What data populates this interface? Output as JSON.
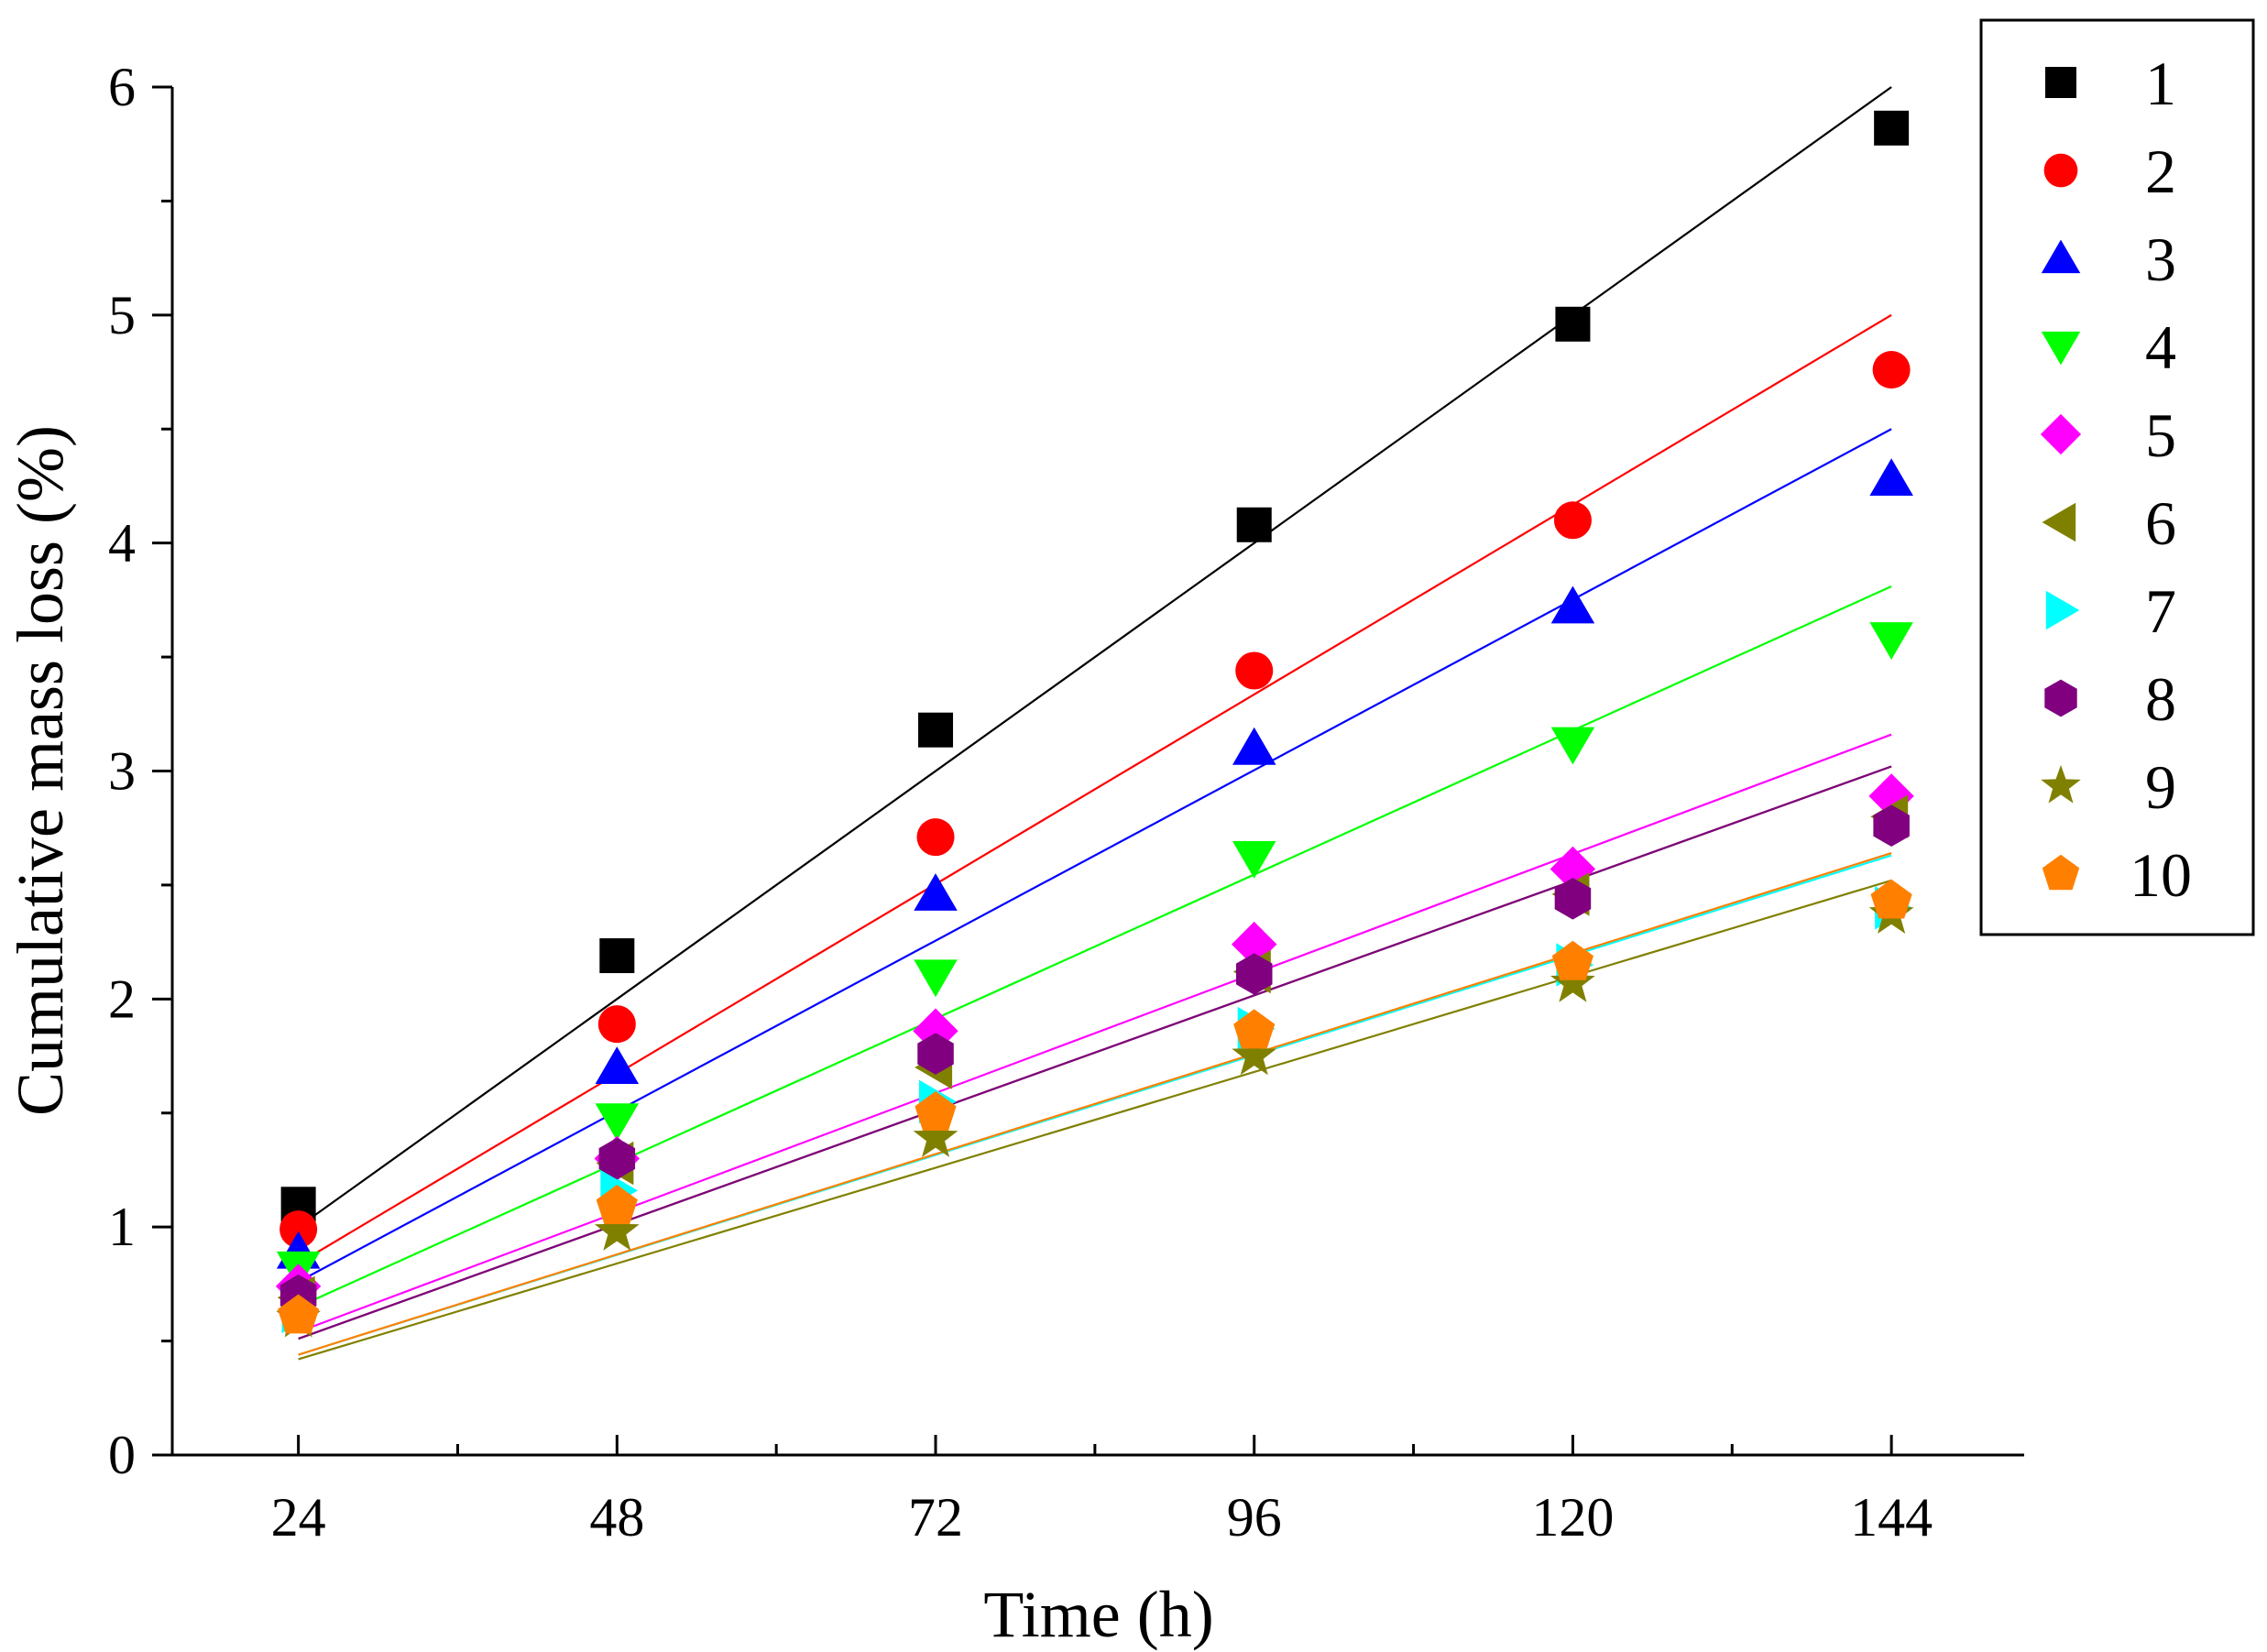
{
  "chart_data": {
    "type": "scatter",
    "xlabel": "Time (h)",
    "ylabel": "Cumulative mass loss (%)",
    "x": [
      24,
      48,
      72,
      96,
      120,
      144
    ],
    "x_ticks": [
      24,
      48,
      72,
      96,
      120,
      144
    ],
    "y_ticks": [
      0,
      1,
      2,
      3,
      4,
      5,
      6
    ],
    "xlim": [
      14.5,
      154
    ],
    "ylim": [
      0,
      6
    ],
    "legend_position": "top-right",
    "series": [
      {
        "name": "1",
        "marker": "square",
        "color": "#000000",
        "values": [
          1.1,
          2.19,
          3.18,
          4.08,
          4.96,
          5.82
        ],
        "fit": {
          "x0": 24,
          "y0": 1.0,
          "x1": 144,
          "y1": 6.0
        }
      },
      {
        "name": "2",
        "marker": "circle",
        "color": "#ff0000",
        "values": [
          0.99,
          1.89,
          2.71,
          3.44,
          4.1,
          4.76
        ],
        "fit": {
          "x0": 24,
          "y0": 0.84,
          "x1": 144,
          "y1": 5.0
        }
      },
      {
        "name": "3",
        "marker": "triangle-up",
        "color": "#0000ff",
        "values": [
          0.89,
          1.7,
          2.46,
          3.1,
          3.72,
          4.28
        ],
        "fit": {
          "x0": 24,
          "y0": 0.76,
          "x1": 144,
          "y1": 4.5
        }
      },
      {
        "name": "4",
        "marker": "triangle-down",
        "color": "#00ff00",
        "values": [
          0.82,
          1.47,
          2.1,
          2.62,
          3.12,
          3.58
        ],
        "fit": {
          "x0": 24,
          "y0": 0.65,
          "x1": 144,
          "y1": 3.81
        }
      },
      {
        "name": "5",
        "marker": "diamond",
        "color": "#ff00ff",
        "values": [
          0.74,
          1.3,
          1.86,
          2.24,
          2.57,
          2.89
        ],
        "fit": {
          "x0": 24,
          "y0": 0.54,
          "x1": 144,
          "y1": 3.16
        }
      },
      {
        "name": "6",
        "marker": "triangle-left",
        "color": "#808000",
        "values": [
          0.69,
          1.28,
          1.7,
          2.12,
          2.46,
          2.8
        ],
        "fit": {
          "x0": 24,
          "y0": 0.51,
          "x1": 144,
          "y1": 3.02
        }
      },
      {
        "name": "7",
        "marker": "triangle-right",
        "color": "#00ffff",
        "values": [
          0.63,
          1.16,
          1.55,
          1.87,
          2.15,
          2.4
        ],
        "fit": {
          "x0": 24,
          "y0": 0.44,
          "x1": 144,
          "y1": 2.63
        }
      },
      {
        "name": "8",
        "marker": "hexagon",
        "color": "#800080",
        "values": [
          0.7,
          1.3,
          1.76,
          2.11,
          2.44,
          2.76
        ],
        "fit": {
          "x0": 24,
          "y0": 0.51,
          "x1": 144,
          "y1": 3.02
        }
      },
      {
        "name": "9",
        "marker": "star",
        "color": "#808000",
        "values": [
          0.6,
          0.98,
          1.39,
          1.75,
          2.07,
          2.37
        ],
        "fit": {
          "x0": 24,
          "y0": 0.42,
          "x1": 144,
          "y1": 2.52
        }
      },
      {
        "name": "10",
        "marker": "pentagon",
        "color": "#ff8000",
        "values": [
          0.61,
          1.09,
          1.5,
          1.86,
          2.16,
          2.43
        ],
        "fit": {
          "x0": 24,
          "y0": 0.44,
          "x1": 144,
          "y1": 2.64
        }
      }
    ]
  }
}
